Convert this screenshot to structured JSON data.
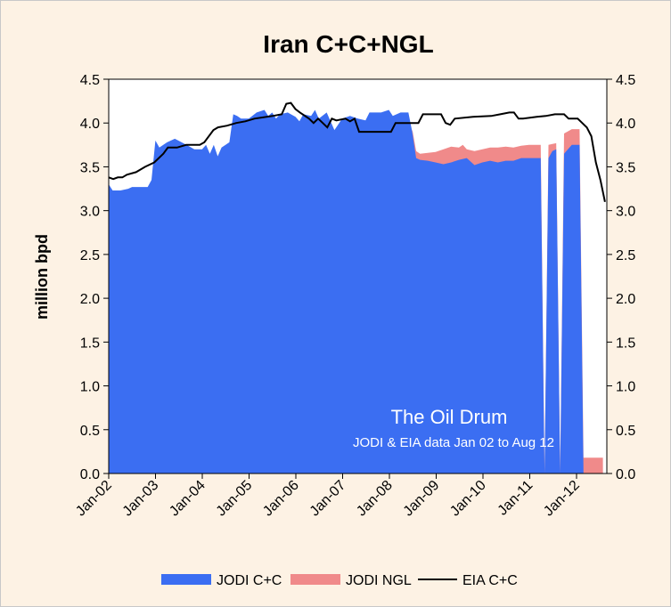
{
  "chart_data": {
    "type": "area",
    "title": "Iran C+C+NGL",
    "ylabel": "million bpd",
    "xlabel": "",
    "ylim": [
      0,
      4.5
    ],
    "y_ticks": [
      "0.0",
      "0.5",
      "1.0",
      "1.5",
      "2.0",
      "2.5",
      "3.0",
      "3.5",
      "4.0",
      "4.5"
    ],
    "x_ticks": [
      "Jan-02",
      "Jan-03",
      "Jan-04",
      "Jan-05",
      "Jan-06",
      "Jan-07",
      "Jan-08",
      "Jan-09",
      "Jan-10",
      "Jan-11",
      "Jan-12"
    ],
    "x_range_months": [
      0,
      128
    ],
    "grid": false,
    "legend_position": "bottom",
    "annotations": [
      "The Oil Drum",
      "JODI & EIA data Jan 02 to Aug 12"
    ],
    "series": [
      {
        "name": "JODI C+C",
        "kind": "area",
        "color": "#3b6ef2",
        "points": [
          [
            0,
            3.3
          ],
          [
            1,
            3.23
          ],
          [
            3,
            3.23
          ],
          [
            5,
            3.25
          ],
          [
            6,
            3.27
          ],
          [
            10,
            3.27
          ],
          [
            11,
            3.35
          ],
          [
            12,
            3.8
          ],
          [
            13,
            3.72
          ],
          [
            15,
            3.78
          ],
          [
            17,
            3.82
          ],
          [
            20,
            3.75
          ],
          [
            22,
            3.7
          ],
          [
            24,
            3.7
          ],
          [
            25,
            3.75
          ],
          [
            26,
            3.65
          ],
          [
            27,
            3.75
          ],
          [
            28,
            3.62
          ],
          [
            29,
            3.72
          ],
          [
            31,
            3.78
          ],
          [
            32,
            4.1
          ],
          [
            33,
            4.08
          ],
          [
            34,
            4.05
          ],
          [
            36,
            4.05
          ],
          [
            38,
            4.12
          ],
          [
            40,
            4.15
          ],
          [
            41,
            4.08
          ],
          [
            42,
            4.12
          ],
          [
            43,
            4.05
          ],
          [
            44,
            4.1
          ],
          [
            46,
            4.12
          ],
          [
            48,
            4.07
          ],
          [
            49,
            4.02
          ],
          [
            50,
            4.1
          ],
          [
            52,
            4.08
          ],
          [
            53,
            4.15
          ],
          [
            54,
            4.05
          ],
          [
            56,
            4.12
          ],
          [
            58,
            3.92
          ],
          [
            60,
            4.05
          ],
          [
            62,
            4.08
          ],
          [
            64,
            4.05
          ],
          [
            66,
            4.03
          ],
          [
            67,
            4.12
          ],
          [
            70,
            4.12
          ],
          [
            72,
            4.15
          ],
          [
            73,
            4.08
          ],
          [
            75,
            4.12
          ],
          [
            77,
            4.12
          ],
          [
            78,
            3.9
          ],
          [
            79,
            3.6
          ],
          [
            80,
            3.58
          ],
          [
            82,
            3.57
          ],
          [
            84,
            3.55
          ],
          [
            86,
            3.53
          ],
          [
            88,
            3.55
          ],
          [
            90,
            3.58
          ],
          [
            92,
            3.6
          ],
          [
            94,
            3.52
          ],
          [
            96,
            3.55
          ],
          [
            98,
            3.57
          ],
          [
            100,
            3.55
          ],
          [
            102,
            3.57
          ],
          [
            104,
            3.57
          ],
          [
            106,
            3.6
          ],
          [
            108,
            3.6
          ],
          [
            111,
            3.6
          ],
          [
            112,
            0.0
          ],
          [
            113,
            3.6
          ],
          [
            114,
            3.68
          ],
          [
            115,
            3.7
          ],
          [
            116,
            0.0
          ],
          [
            117,
            3.65
          ],
          [
            119,
            3.75
          ],
          [
            121,
            3.75
          ],
          [
            122,
            0.0
          ],
          [
            127,
            0.0
          ]
        ]
      },
      {
        "name": "JODI NGL",
        "kind": "area",
        "color": "#f08a8a",
        "points": [
          [
            78,
            3.93
          ],
          [
            79,
            3.68
          ],
          [
            80,
            3.65
          ],
          [
            82,
            3.66
          ],
          [
            84,
            3.67
          ],
          [
            86,
            3.7
          ],
          [
            88,
            3.73
          ],
          [
            90,
            3.72
          ],
          [
            91,
            3.75
          ],
          [
            92,
            3.7
          ],
          [
            94,
            3.68
          ],
          [
            96,
            3.7
          ],
          [
            98,
            3.72
          ],
          [
            100,
            3.72
          ],
          [
            102,
            3.73
          ],
          [
            104,
            3.72
          ],
          [
            106,
            3.74
          ],
          [
            108,
            3.75
          ],
          [
            111,
            3.75
          ],
          [
            112,
            0.0
          ],
          [
            113,
            3.75
          ],
          [
            114,
            3.76
          ],
          [
            115,
            3.77
          ],
          [
            116,
            0.0
          ],
          [
            117,
            3.88
          ],
          [
            119,
            3.93
          ],
          [
            121,
            3.93
          ],
          [
            122,
            0.18
          ],
          [
            127,
            0.18
          ]
        ]
      },
      {
        "name": "EIA C+C",
        "kind": "line",
        "color": "#000000",
        "points": [
          [
            0,
            3.38
          ],
          [
            1,
            3.36
          ],
          [
            2,
            3.38
          ],
          [
            3,
            3.38
          ],
          [
            4,
            3.41
          ],
          [
            6,
            3.44
          ],
          [
            8,
            3.5
          ],
          [
            10,
            3.55
          ],
          [
            12,
            3.65
          ],
          [
            13,
            3.72
          ],
          [
            15,
            3.72
          ],
          [
            17,
            3.75
          ],
          [
            20,
            3.75
          ],
          [
            21,
            3.78
          ],
          [
            23,
            3.92
          ],
          [
            24,
            3.95
          ],
          [
            26,
            3.97
          ],
          [
            28,
            4.0
          ],
          [
            30,
            4.02
          ],
          [
            32,
            4.05
          ],
          [
            36,
            4.08
          ],
          [
            38,
            4.1
          ],
          [
            39,
            4.22
          ],
          [
            40,
            4.23
          ],
          [
            41,
            4.16
          ],
          [
            42,
            4.12
          ],
          [
            44,
            4.05
          ],
          [
            45,
            4.0
          ],
          [
            46,
            4.05
          ],
          [
            47,
            4.0
          ],
          [
            48,
            3.95
          ],
          [
            49,
            4.05
          ],
          [
            50,
            4.03
          ],
          [
            52,
            4.05
          ],
          [
            53,
            4.02
          ],
          [
            54,
            4.05
          ],
          [
            55,
            3.9
          ],
          [
            56,
            3.9
          ],
          [
            62,
            3.9
          ],
          [
            63,
            4.0
          ],
          [
            68,
            4.0
          ],
          [
            69,
            4.1
          ],
          [
            73,
            4.1
          ],
          [
            74,
            4.0
          ],
          [
            75,
            3.98
          ],
          [
            76,
            4.05
          ],
          [
            80,
            4.07
          ],
          [
            84,
            4.08
          ],
          [
            86,
            4.1
          ],
          [
            88,
            4.12
          ],
          [
            89,
            4.12
          ],
          [
            90,
            4.05
          ],
          [
            91,
            4.05
          ],
          [
            94,
            4.07
          ],
          [
            96,
            4.08
          ],
          [
            98,
            4.1
          ],
          [
            100,
            4.1
          ],
          [
            101,
            4.05
          ],
          [
            103,
            4.05
          ],
          [
            104,
            4.0
          ],
          [
            105,
            3.95
          ],
          [
            106,
            3.85
          ],
          [
            107,
            3.55
          ],
          [
            108,
            3.35
          ],
          [
            109,
            3.1
          ]
        ]
      }
    ],
    "eia_x_scale": 1.17
  }
}
